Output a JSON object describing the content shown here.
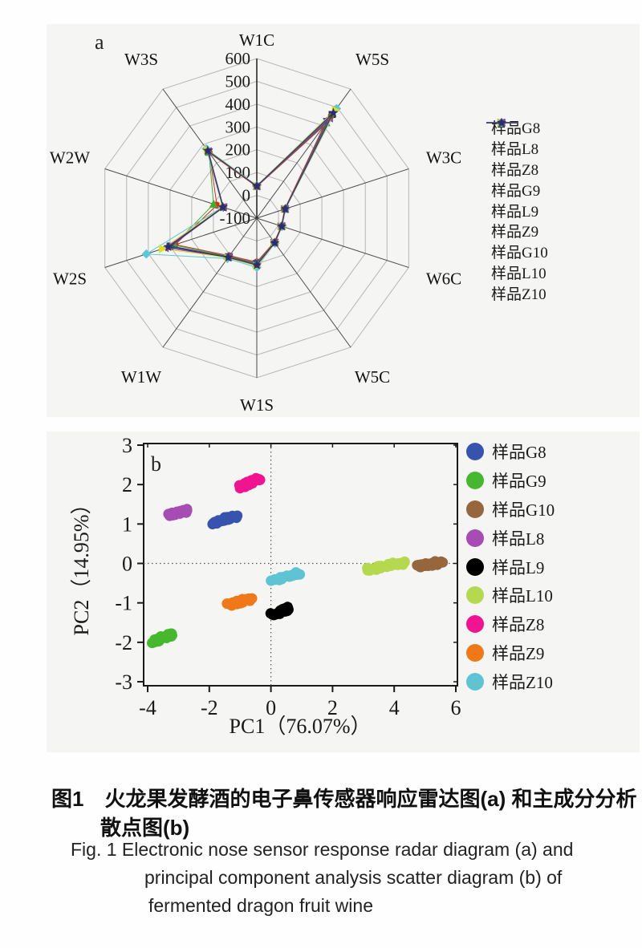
{
  "chart_data": [
    {
      "type": "radar",
      "panel_label": "a",
      "axes": [
        "W1C",
        "W5S",
        "W3C",
        "W6C",
        "W5C",
        "W1S",
        "W1W",
        "W2S",
        "W2W",
        "W3S"
      ],
      "radial_min": -100,
      "radial_max": 600,
      "radial_ticks": [
        600,
        500,
        400,
        300,
        200,
        100,
        0,
        -100
      ],
      "grid": "decagon-rings",
      "legend_position": "right",
      "series": [
        {
          "name": "样品G8",
          "color": "#141414",
          "marker": "square",
          "values": [
            40,
            462,
            30,
            14,
            32,
            100,
            110,
            300,
            54,
            262
          ]
        },
        {
          "name": "样品L8",
          "color": "#e62522",
          "marker": "circle",
          "values": [
            38,
            402,
            28,
            13,
            30,
            92,
            104,
            276,
            84,
            254
          ]
        },
        {
          "name": "样品Z8",
          "color": "#3fae28",
          "marker": "triangle-up",
          "values": [
            40,
            417,
            30,
            14,
            32,
            96,
            107,
            282,
            99,
            257
          ]
        },
        {
          "name": "样品G9",
          "color": "#2d47a8",
          "marker": "triangle-down",
          "values": [
            40,
            424,
            30,
            14,
            32,
            99,
            109,
            296,
            54,
            259
          ]
        },
        {
          "name": "样品L9",
          "color": "#59c8d8",
          "marker": "diamond",
          "values": [
            43,
            494,
            33,
            17,
            36,
            116,
            119,
            409,
            58,
            276
          ]
        },
        {
          "name": "样品Z9",
          "color": "#a93cb4",
          "marker": "triangle-left",
          "values": [
            40,
            442,
            30,
            14,
            33,
            102,
            111,
            322,
            55,
            262
          ]
        },
        {
          "name": "样品G10",
          "color": "#dde01e",
          "marker": "triangle-right",
          "values": [
            42,
            486,
            32,
            16,
            35,
            110,
            115,
            335,
            57,
            270
          ]
        },
        {
          "name": "样品L10",
          "color": "#6b6b1d",
          "marker": "circle",
          "values": [
            40,
            456,
            30,
            15,
            33,
            104,
            111,
            304,
            55,
            263
          ]
        },
        {
          "name": "样品Z10",
          "color": "#2b2b7d",
          "marker": "star",
          "values": [
            41,
            471,
            31,
            15,
            34,
            106,
            113,
            308,
            56,
            266
          ]
        }
      ]
    },
    {
      "type": "scatter",
      "panel_label": "b",
      "xlabel": "PC1（76.07%）",
      "ylabel": "PC2（14.95%）",
      "xlim": [
        -4,
        6
      ],
      "ylim": [
        -3,
        3
      ],
      "x_ticks": [
        -4,
        -2,
        0,
        2,
        4,
        6
      ],
      "y_ticks": [
        3,
        2,
        1,
        0,
        -1,
        -2,
        -3
      ],
      "zero_lines": "dotted",
      "legend_position": "right",
      "series": [
        {
          "name": "样品G8",
          "color": "#3753ae",
          "cluster_from": [
            -1.88,
            1.04
          ],
          "cluster_to": [
            -1.12,
            1.2
          ]
        },
        {
          "name": "样品G9",
          "color": "#45b82e",
          "cluster_from": [
            -3.8,
            -1.97
          ],
          "cluster_to": [
            -3.18,
            -1.78
          ]
        },
        {
          "name": "样品G10",
          "color": "#96663c",
          "cluster_from": [
            4.78,
            -0.08
          ],
          "cluster_to": [
            5.52,
            0.03
          ]
        },
        {
          "name": "样品L8",
          "color": "#a74cb4",
          "cluster_from": [
            -3.32,
            1.21
          ],
          "cluster_to": [
            -2.72,
            1.34
          ]
        },
        {
          "name": "样品L9",
          "color": "#000000",
          "cluster_from": [
            0.04,
            -1.31
          ],
          "cluster_to": [
            0.62,
            -1.13
          ]
        },
        {
          "name": "样品L10",
          "color": "#b4d94e",
          "cluster_from": [
            3.08,
            -0.16
          ],
          "cluster_to": [
            4.32,
            0.02
          ]
        },
        {
          "name": "样品Z8",
          "color": "#f01490",
          "cluster_from": [
            -1.02,
            1.94
          ],
          "cluster_to": [
            -0.34,
            2.16
          ]
        },
        {
          "name": "样品Z9",
          "color": "#f07819",
          "cluster_from": [
            -1.38,
            -1.06
          ],
          "cluster_to": [
            -0.66,
            -0.9
          ]
        },
        {
          "name": "样品Z10",
          "color": "#5ec4d4",
          "cluster_from": [
            0.02,
            -0.46
          ],
          "cluster_to": [
            0.92,
            -0.24
          ]
        }
      ]
    }
  ],
  "caption": {
    "zh_line1": "图1　火龙果发酵酒的电子鼻传感器响应雷达图(a) 和主成分分析",
    "zh_line2": "散点图(b)",
    "en_line1": "Fig. 1 Electronic nose sensor response radar diagram (a) and",
    "en_line2": "principal component analysis scatter diagram (b) of",
    "en_line3": "fermented dragon fruit wine"
  }
}
